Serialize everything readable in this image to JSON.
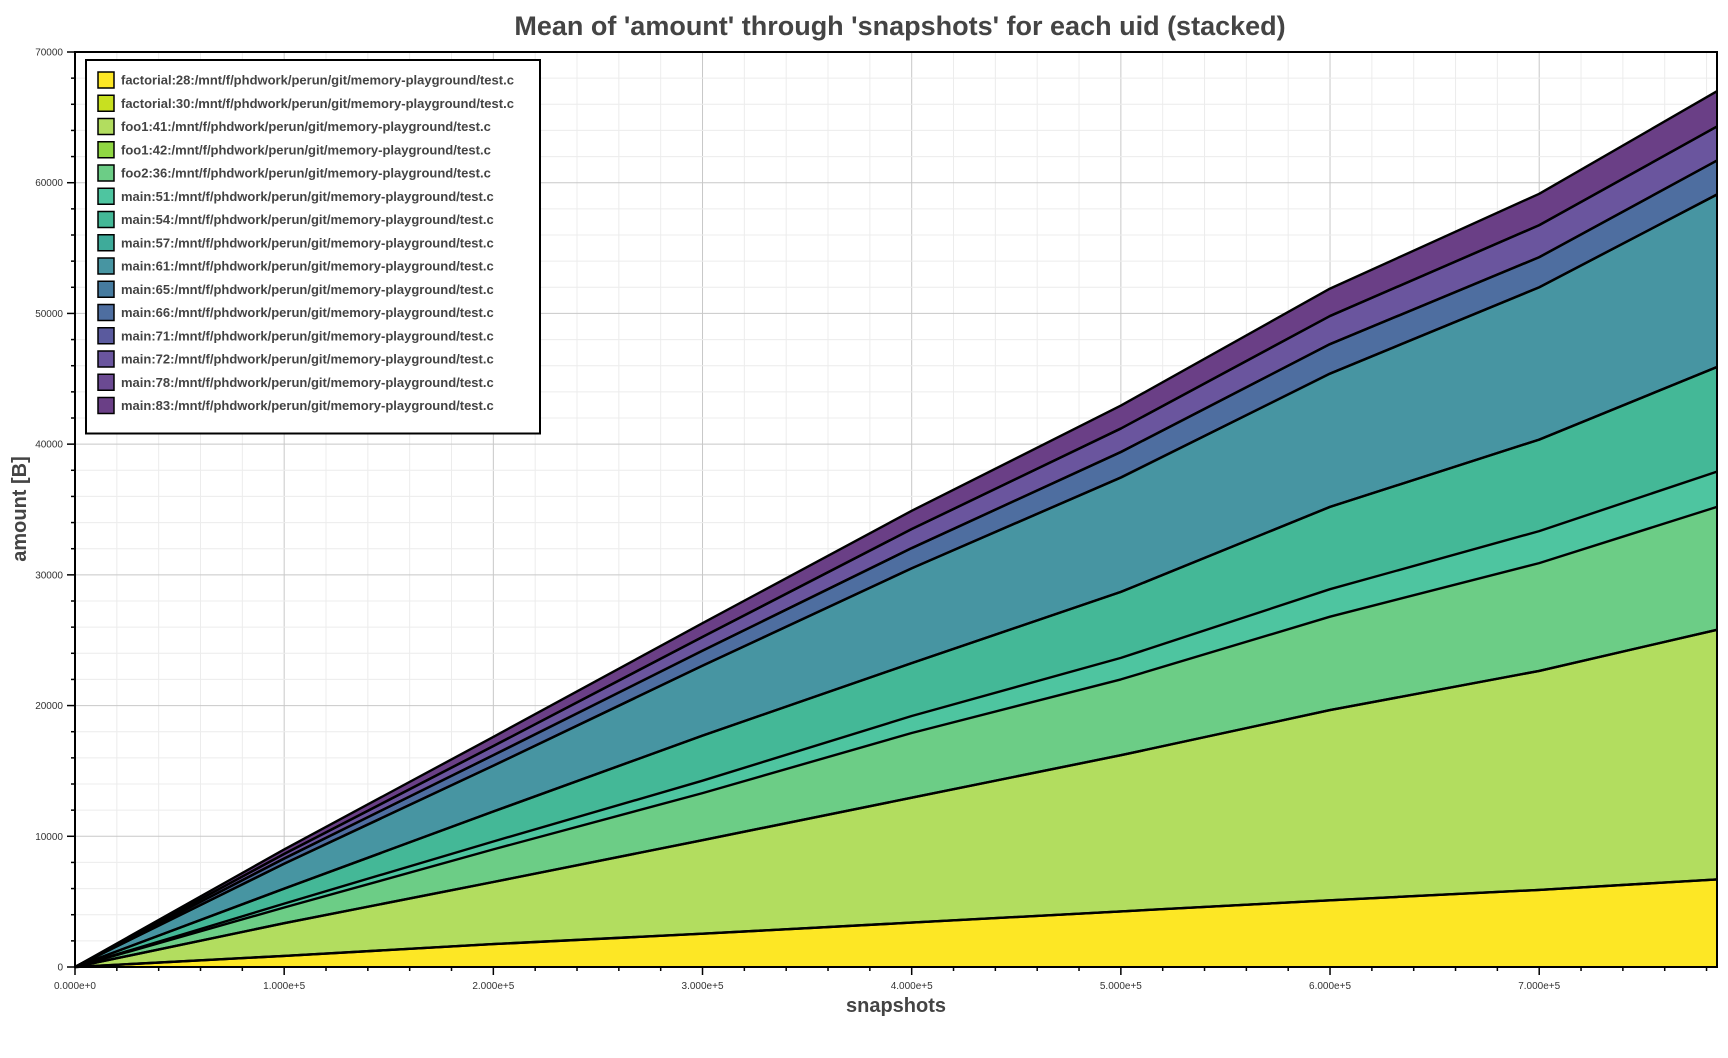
{
  "chart_data": {
    "type": "area",
    "stacked": true,
    "title": "Mean of 'amount' through 'snapshots' for each uid (stacked)",
    "xlabel": "snapshots",
    "ylabel": "amount [B]",
    "xlim": [
      0,
      785000
    ],
    "ylim": [
      0,
      70000
    ],
    "x_ticks": [
      0,
      100000,
      200000,
      300000,
      400000,
      500000,
      600000,
      700000
    ],
    "x_tick_labels": [
      "0.000e+0",
      "1.000e+5",
      "2.000e+5",
      "3.000e+5",
      "4.000e+5",
      "5.000e+5",
      "6.000e+5",
      "7.000e+5"
    ],
    "y_ticks": [
      0,
      10000,
      20000,
      30000,
      40000,
      50000,
      60000,
      70000
    ],
    "y_tick_labels": [
      "0",
      "10000",
      "20000",
      "30000",
      "40000",
      "50000",
      "60000",
      "70000"
    ],
    "grid": true,
    "legend_position": "top-left",
    "x": [
      0,
      100000,
      200000,
      300000,
      400000,
      500000,
      600000,
      700000,
      785000
    ],
    "series": [
      {
        "name": "factorial:28:/mnt/f/phdwork/perun/git/memory-playground/test.c",
        "color": "#fde725",
        "values": [
          0,
          850,
          1750,
          2550,
          3400,
          4250,
          5100,
          5900,
          6700
        ]
      },
      {
        "name": "factorial:30:/mnt/f/phdwork/perun/git/memory-playground/test.c",
        "color": "#c8e020",
        "values": [
          0,
          0,
          0,
          0,
          0,
          0,
          0,
          0,
          0
        ]
      },
      {
        "name": "foo1:41:/mnt/f/phdwork/perun/git/memory-playground/test.c",
        "color": "#b2dd5f",
        "values": [
          0,
          2500,
          4750,
          7150,
          9550,
          11950,
          14550,
          16750,
          19100
        ]
      },
      {
        "name": "foo1:42:/mnt/f/phdwork/perun/git/memory-playground/test.c",
        "color": "#90d743",
        "values": [
          0,
          0,
          0,
          0,
          0,
          0,
          0,
          0,
          0
        ]
      },
      {
        "name": "foo2:36:/mnt/f/phdwork/perun/git/memory-playground/test.c",
        "color": "#6ccd86",
        "values": [
          0,
          1200,
          2500,
          3600,
          4950,
          5800,
          7150,
          8250,
          9400
        ]
      },
      {
        "name": "main:51:/mnt/f/phdwork/perun/git/memory-playground/test.c",
        "color": "#4ec5a0",
        "values": [
          0,
          300,
          600,
          950,
          1300,
          1650,
          2100,
          2450,
          2700
        ]
      },
      {
        "name": "main:54:/mnt/f/phdwork/perun/git/memory-playground/test.c",
        "color": "#44b897",
        "values": [
          0,
          1150,
          2300,
          3450,
          4050,
          5050,
          6300,
          7000,
          8000
        ]
      },
      {
        "name": "main:57:/mnt/f/phdwork/perun/git/memory-playground/test.c",
        "color": "#3eab9a",
        "values": [
          0,
          0,
          0,
          0,
          0,
          0,
          0,
          0,
          0
        ]
      },
      {
        "name": "main:61:/mnt/f/phdwork/perun/git/memory-playground/test.c",
        "color": "#4795a2",
        "values": [
          0,
          1900,
          3500,
          5350,
          7250,
          8750,
          10200,
          11650,
          13200
        ]
      },
      {
        "name": "main:65:/mnt/f/phdwork/perun/git/memory-playground/test.c",
        "color": "#467b9f",
        "values": [
          0,
          0,
          0,
          0,
          0,
          0,
          0,
          0,
          0
        ]
      },
      {
        "name": "main:66:/mnt/f/phdwork/perun/git/memory-playground/test.c",
        "color": "#4e6ea0",
        "values": [
          0,
          400,
          800,
          1150,
          1550,
          1950,
          2250,
          2300,
          2600
        ]
      },
      {
        "name": "main:71:/mnt/f/phdwork/perun/git/memory-playground/test.c",
        "color": "#5a5a9e",
        "values": [
          0,
          0,
          0,
          0,
          0,
          0,
          0,
          0,
          0
        ]
      },
      {
        "name": "main:72:/mnt/f/phdwork/perun/git/memory-playground/test.c",
        "color": "#6a559e",
        "values": [
          0,
          350,
          700,
          1050,
          1450,
          1800,
          2150,
          2450,
          2600
        ]
      },
      {
        "name": "main:78:/mnt/f/phdwork/perun/git/memory-playground/test.c",
        "color": "#6b4a92",
        "values": [
          0,
          0,
          0,
          0,
          0,
          0,
          0,
          0,
          0
        ]
      },
      {
        "name": "main:83:/mnt/f/phdwork/perun/git/memory-playground/test.c",
        "color": "#6a3f86",
        "values": [
          0,
          350,
          700,
          1050,
          1400,
          1750,
          2100,
          2400,
          2700
        ]
      }
    ]
  }
}
